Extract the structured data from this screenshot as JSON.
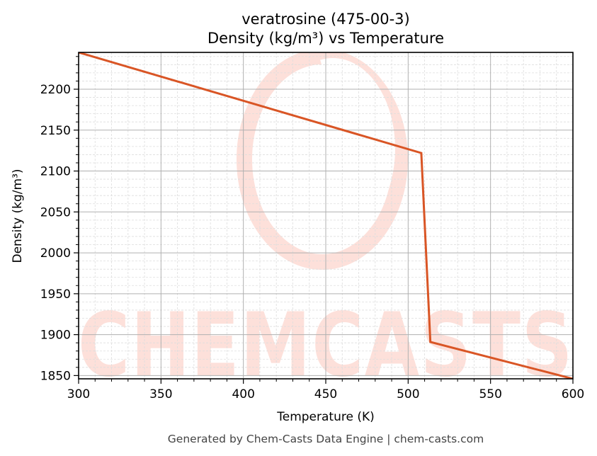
{
  "chart_data": {
    "type": "line",
    "title": "veratrosine (475-00-3)",
    "subtitle": "Density (kg/m³) vs Temperature",
    "xlabel": "Temperature (K)",
    "ylabel": "Density (kg/m³)",
    "xlim": [
      300,
      600
    ],
    "ylim": [
      1846,
      2245
    ],
    "x_ticks": [
      300,
      350,
      400,
      450,
      500,
      550,
      600
    ],
    "y_ticks": [
      1850,
      1900,
      1950,
      2000,
      2050,
      2100,
      2150,
      2200
    ],
    "x_minor_step": 10,
    "y_minor_step": 10,
    "grid": true,
    "legend": null,
    "series": [
      {
        "name": "Density",
        "color": "#d95525",
        "x": [
          300,
          508,
          513.5,
          600
        ],
        "y": [
          2245,
          2122,
          1891,
          1846
        ]
      }
    ]
  },
  "watermark": {
    "text": "CHEMCASTS",
    "color": "#fde0da"
  },
  "footer": {
    "text": "Generated by Chem-Casts Data Engine | chem-casts.com"
  }
}
